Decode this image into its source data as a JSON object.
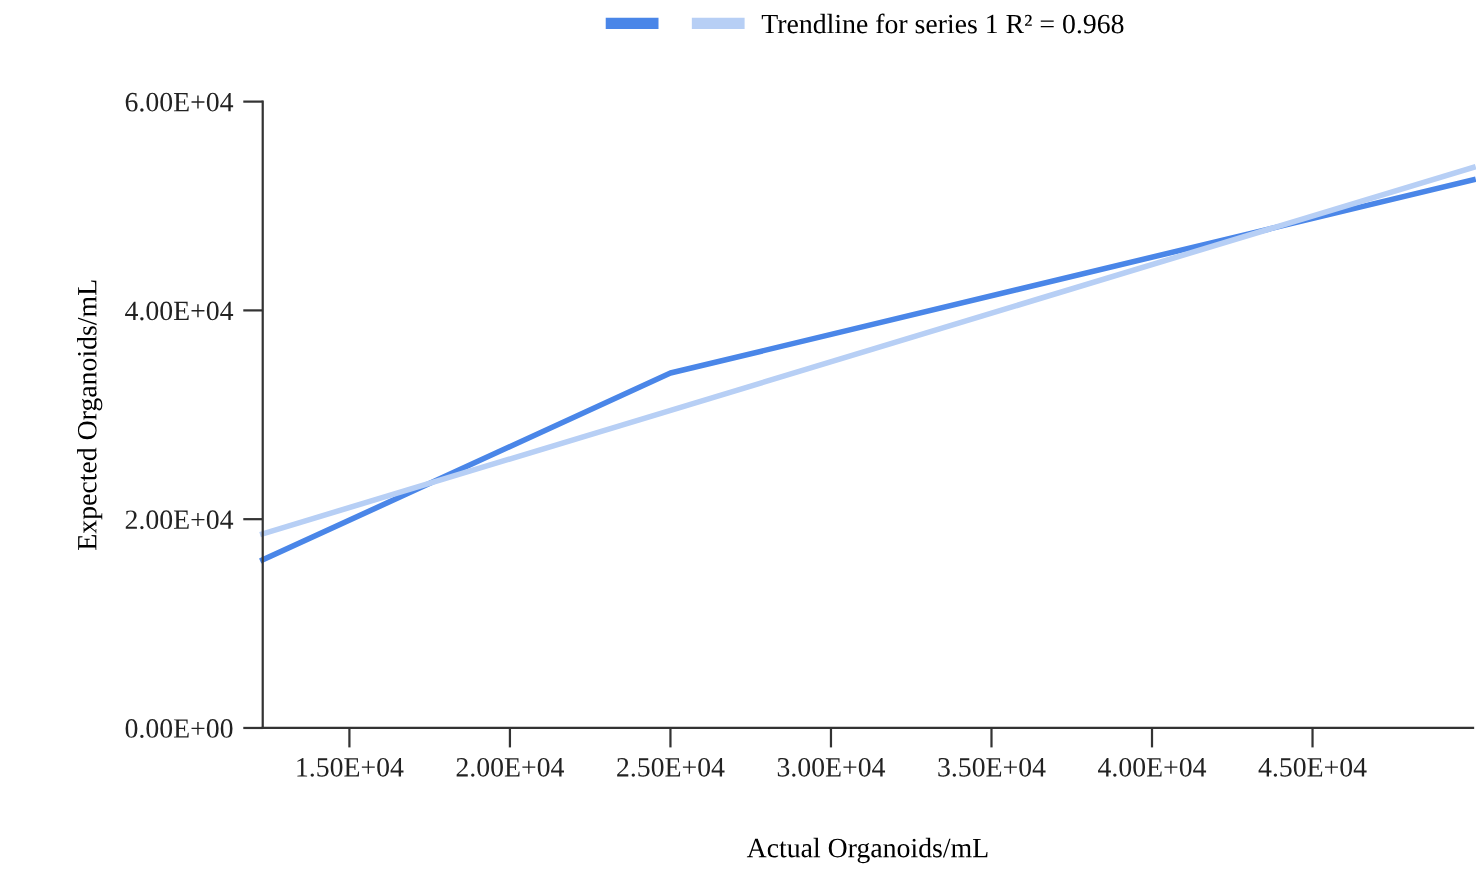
{
  "chart_data": {
    "type": "line",
    "xlabel": "Actual Organoids/mL",
    "ylabel": "Expected Organoids/mL",
    "series": [
      {
        "color": "#4a86e8",
        "x": [
          12300,
          25000,
          50000
        ],
        "values": [
          16100,
          34000,
          52500
        ]
      },
      {
        "name": "Trendline for series 1 R² = 0.968",
        "color": "#b7cff5",
        "x": [
          12300,
          50000
        ],
        "values": [
          18600,
          53700
        ]
      }
    ],
    "xlim": [
      12300,
      50000
    ],
    "xticks": [
      {
        "value": 15000,
        "label": "1.50E+04"
      },
      {
        "value": 20000,
        "label": "2.00E+04"
      },
      {
        "value": 25000,
        "label": "2.50E+04"
      },
      {
        "value": 30000,
        "label": "3.00E+04"
      },
      {
        "value": 35000,
        "label": "3.50E+04"
      },
      {
        "value": 40000,
        "label": "4.00E+04"
      },
      {
        "value": 45000,
        "label": "4.50E+04"
      }
    ],
    "ylim": [
      0,
      60000
    ],
    "yticks": [
      {
        "value": 0,
        "label": "0.00E+00"
      },
      {
        "value": 20000,
        "label": "2.00E+04"
      },
      {
        "value": 40000,
        "label": "4.00E+04"
      },
      {
        "value": 60000,
        "label": "6.00E+04"
      }
    ],
    "grid": false,
    "legend": "top",
    "marker": "none",
    "line_style": "solid"
  }
}
